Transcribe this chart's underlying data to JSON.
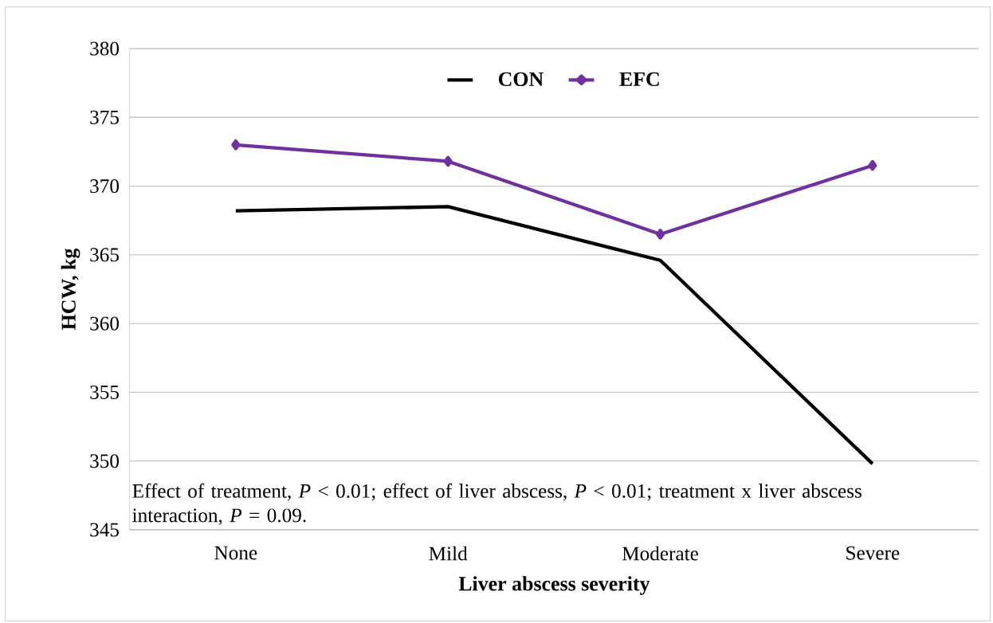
{
  "chart_data": {
    "type": "line",
    "xlabel": "Liver abscess severity",
    "ylabel": "HCW, kg",
    "categories": [
      "None",
      "Mild",
      "Moderate",
      "Severe"
    ],
    "series": [
      {
        "name": "CON",
        "color": "#000000",
        "marker": "none",
        "values": [
          368.2,
          368.5,
          364.6,
          349.8
        ]
      },
      {
        "name": "EFC",
        "color": "#7030a0",
        "marker": "diamond",
        "values": [
          373.0,
          371.8,
          366.5,
          371.5
        ]
      }
    ],
    "ylim": [
      345,
      380
    ],
    "yticks": [
      345,
      350,
      355,
      360,
      365,
      370,
      375,
      380
    ],
    "grid": "y",
    "legend": "top",
    "line_style": "solid",
    "annotations": [
      "Effect of treatment, *P* < 0.01;  effect of liver abscess, *P* < 0.01;  treatment x liver abscess interaction, *P* = 0.09."
    ]
  }
}
